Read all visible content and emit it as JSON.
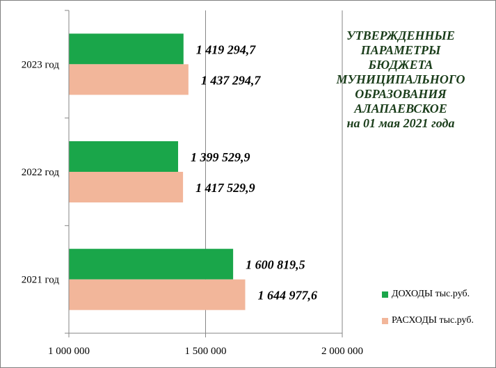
{
  "chart_data": {
    "type": "bar",
    "orientation": "horizontal",
    "title": "УТВЕРЖДЕННЫЕ\nПАРАМЕТРЫ\nБЮДЖЕТА\nМУНИЦИПАЛЬНОГО\nОБРАЗОВАНИЯ\nАЛАПАЕВСКОЕ\nна  01 мая 2021 года",
    "categories": [
      "2023 год",
      "2022 год",
      "2021 год"
    ],
    "series": [
      {
        "name": "ДОХОДЫ тыс.руб.",
        "color": "#1aa64a",
        "values": [
          1419294.7,
          1399529.9,
          1600819.5
        ],
        "labels": [
          "1 419 294,7",
          "1 399 529,9",
          "1 600 819,5"
        ]
      },
      {
        "name": "РАСХОДЫ тыс.руб.",
        "color": "#f2b69a",
        "values": [
          1437294.7,
          1417529.9,
          1644977.6
        ],
        "labels": [
          "1 437 294,7",
          "1 417 529,9",
          "1 644 977,6"
        ]
      }
    ],
    "xlim": [
      1000000,
      2000000
    ],
    "xticks": [
      1000000,
      1500000,
      2000000
    ],
    "xtick_labels": [
      "1 000 000",
      "1 500 000",
      "2 000 000"
    ],
    "grid": true,
    "legend_position": "bottom-right"
  }
}
